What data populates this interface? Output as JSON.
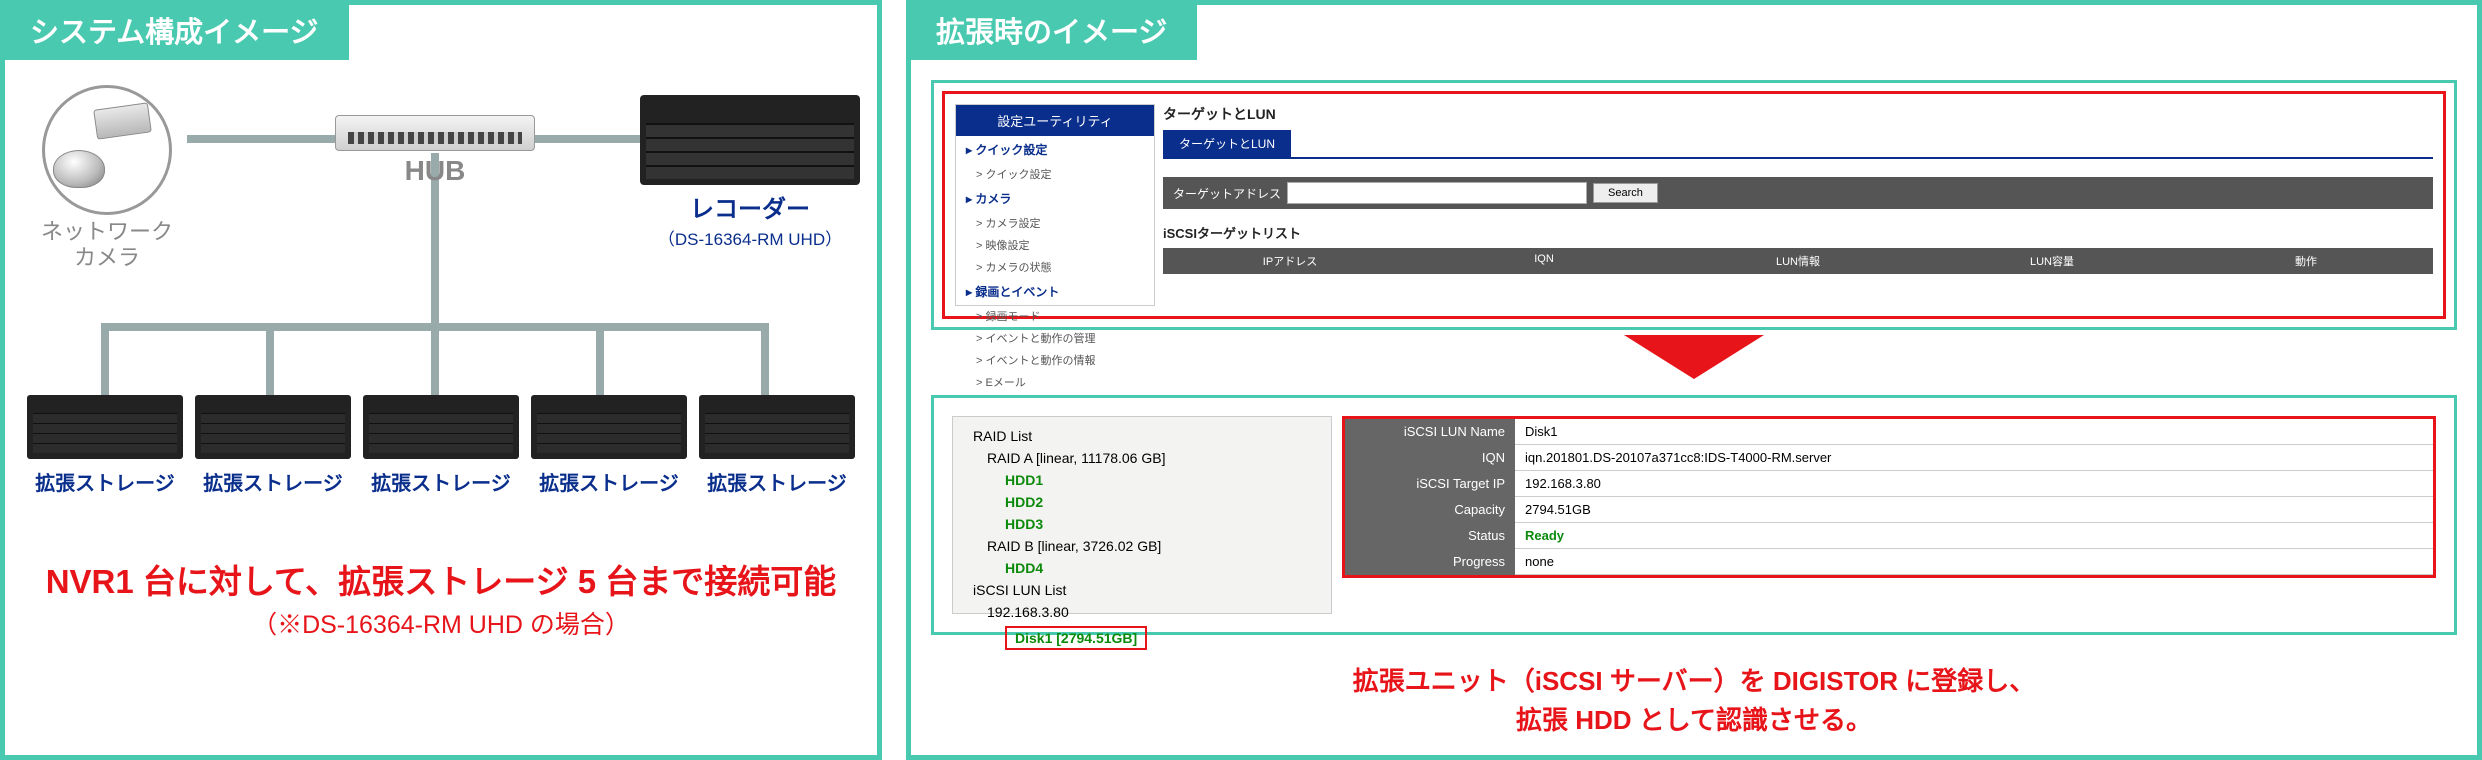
{
  "colors": {
    "accent": "#48c9b0",
    "deepblue": "#0a2e8c",
    "red": "#e7141a",
    "green": "#0b8a0b",
    "grey": "#888"
  },
  "left": {
    "tab": "システム構成イメージ",
    "camera_label": "ネットワーク\nカメラ",
    "hub_label": "HUB",
    "recorder": {
      "title": "レコーダー",
      "sub": "（DS-16364-RM UHD）"
    },
    "storage_label": "拡張ストレージ",
    "storage_count": 5,
    "headline": "NVR1 台に対して、拡張ストレージ 5 台まで接続可能",
    "subline": "（※DS-16364-RM UHD の場合）"
  },
  "right": {
    "tab": "拡張時のイメージ",
    "shotA": {
      "nav_header": "設定ユーティリティ",
      "nav": [
        {
          "t": "クイック設定",
          "b": true
        },
        {
          "t": "クイック設定",
          "sub": true
        },
        {
          "t": "カメラ",
          "b": true
        },
        {
          "t": "カメラ設定",
          "sub": true
        },
        {
          "t": "映像設定",
          "sub": true
        },
        {
          "t": "カメラの状態",
          "sub": true
        },
        {
          "t": "録画とイベント",
          "b": true
        },
        {
          "t": "録画モード",
          "sub": true
        },
        {
          "t": "イベントと動作の管理",
          "sub": true
        },
        {
          "t": "イベントと動作の情報",
          "sub": true
        },
        {
          "t": "Eメール",
          "sub": true
        }
      ],
      "title": "ターゲットとLUN",
      "tab_label": "ターゲットとLUN",
      "search_row_label": "ターゲットアドレス",
      "search_btn": "Search",
      "list_title": "iSCSIターゲットリスト",
      "th": [
        "IPアドレス",
        "IQN",
        "LUN情報",
        "LUN容量",
        "動作"
      ]
    },
    "shotB": {
      "tree_title": "RAID List",
      "raidA": "RAID A [linear, 11178.06 GB]",
      "hdds": [
        "HDD1",
        "HDD2",
        "HDD3"
      ],
      "raidB": "RAID B [linear, 3726.02 GB]",
      "hdd4": "HDD4",
      "lun_title": "iSCSI LUN List",
      "ip": "192.168.3.80",
      "disk": "Disk1 [2794.51GB]",
      "props": [
        {
          "k": "iSCSI LUN Name",
          "v": "Disk1"
        },
        {
          "k": "IQN",
          "v": "iqn.201801.DS-20107a371cc8:IDS-T4000-RM.server"
        },
        {
          "k": "iSCSI Target IP",
          "v": "192.168.3.80"
        },
        {
          "k": "Capacity",
          "v": "2794.51GB"
        },
        {
          "k": "Status",
          "v": "Ready",
          "g": true
        },
        {
          "k": "Progress",
          "v": "none"
        }
      ]
    },
    "caption": "拡張ユニット（iSCSI サーバー）を DIGISTOR に登録し、\n拡張 HDD として認識させる。"
  }
}
